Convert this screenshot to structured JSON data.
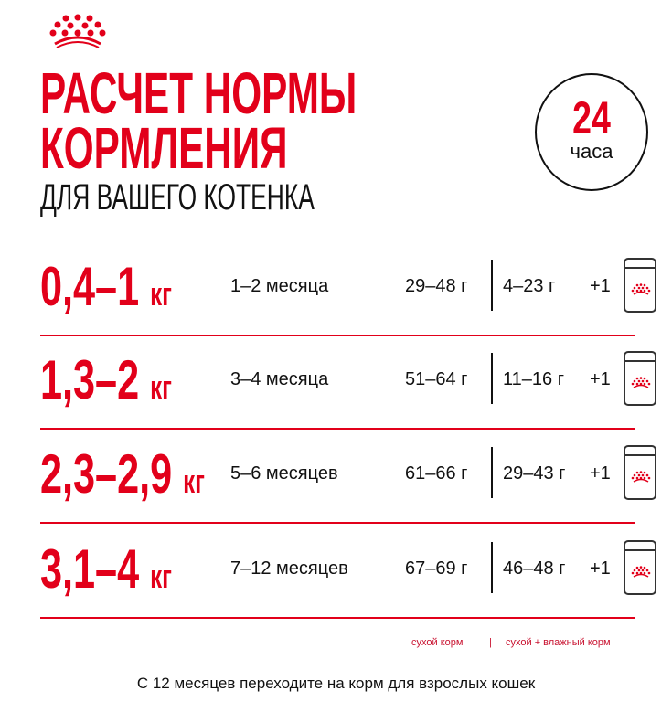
{
  "brand": {
    "logo": "royal-crown-logo",
    "accent": "#e2001a"
  },
  "header": {
    "title_line1": "РАСЧЕТ НОРМЫ",
    "title_line2": "КОРМЛЕНИЯ",
    "subtitle": "ДЛЯ ВАШЕГО КОТЕНКА"
  },
  "badge": {
    "number": "24",
    "unit": "часа"
  },
  "rows": [
    {
      "weight": "0,4–1",
      "unit": "кг",
      "age": "1–2 месяца",
      "dry": "29–48 г",
      "wet": "4–23 г",
      "plus": "+1",
      "icon": "pouch-icon"
    },
    {
      "weight": "1,3–2",
      "unit": "кг",
      "age": "3–4 месяца",
      "dry": "51–64 г",
      "wet": "11–16 г",
      "plus": "+1",
      "icon": "pouch-icon"
    },
    {
      "weight": "2,3–2,9",
      "unit": "кг",
      "age": "5–6 месяцев",
      "dry": "61–66 г",
      "wet": "29–43 г",
      "plus": "+1",
      "icon": "pouch-icon"
    },
    {
      "weight": "3,1–4",
      "unit": "кг",
      "age": "7–12 месяцев",
      "dry": "67–69 г",
      "wet": "46–48 г",
      "plus": "+1",
      "icon": "pouch-icon"
    }
  ],
  "legend": {
    "dry": "сухой корм",
    "separator": "|",
    "mixed": "сухой + влажный корм"
  },
  "footer": "С 12 месяцев переходите на корм для взрослых кошек"
}
